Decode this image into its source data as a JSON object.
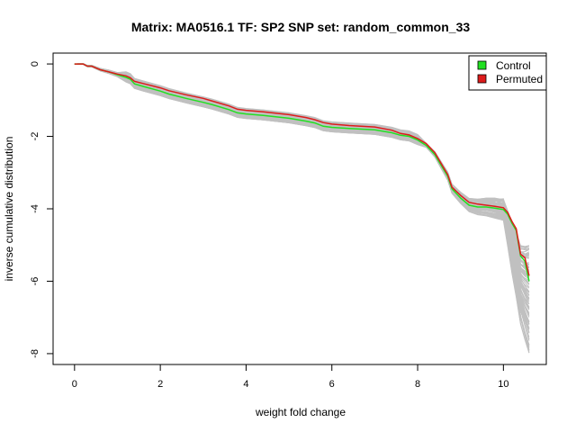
{
  "chart_data": {
    "type": "line",
    "title": "Matrix: MA0516.1 TF: SP2 SNP set: random_common_33",
    "xlabel": "weight fold change",
    "ylabel": "inverse cumulative distribution",
    "xlim": [
      -0.5,
      11.0
    ],
    "ylim": [
      -8.3,
      0.3
    ],
    "x_ticks": [
      0,
      2,
      4,
      6,
      8,
      10
    ],
    "y_ticks": [
      0,
      -2,
      -4,
      -6,
      -8
    ],
    "legend": {
      "placement": "top-right",
      "entries": [
        {
          "label": "Control",
          "color": "#22e022"
        },
        {
          "label": "Permuted",
          "color": "#dd1b1b"
        }
      ]
    },
    "background_lines": {
      "count": 100,
      "color": "#c0c0c0",
      "tail_range_at_x_10_6": [
        -8.0,
        -5.0
      ]
    },
    "series": [
      {
        "name": "Control",
        "color": "#22e022",
        "points": [
          [
            0,
            0
          ],
          [
            0.2,
            0
          ],
          [
            0.3,
            -0.06
          ],
          [
            0.4,
            -0.06
          ],
          [
            0.6,
            -0.16
          ],
          [
            0.8,
            -0.22
          ],
          [
            1,
            -0.3
          ],
          [
            1.2,
            -0.37
          ],
          [
            1.3,
            -0.42
          ],
          [
            1.4,
            -0.55
          ],
          [
            1.6,
            -0.62
          ],
          [
            2,
            -0.75
          ],
          [
            2.2,
            -0.83
          ],
          [
            2.6,
            -0.95
          ],
          [
            3,
            -1.06
          ],
          [
            3.2,
            -1.12
          ],
          [
            3.6,
            -1.26
          ],
          [
            3.8,
            -1.35
          ],
          [
            4,
            -1.38
          ],
          [
            4.4,
            -1.42
          ],
          [
            5,
            -1.5
          ],
          [
            5.4,
            -1.58
          ],
          [
            5.6,
            -1.63
          ],
          [
            5.8,
            -1.72
          ],
          [
            6,
            -1.75
          ],
          [
            6.4,
            -1.78
          ],
          [
            7,
            -1.82
          ],
          [
            7.4,
            -1.9
          ],
          [
            7.6,
            -1.97
          ],
          [
            7.8,
            -2.0
          ],
          [
            8,
            -2.1
          ],
          [
            8.2,
            -2.25
          ],
          [
            8.4,
            -2.5
          ],
          [
            8.6,
            -2.9
          ],
          [
            8.7,
            -3.1
          ],
          [
            8.8,
            -3.45
          ],
          [
            9,
            -3.7
          ],
          [
            9.2,
            -3.9
          ],
          [
            9.4,
            -3.95
          ],
          [
            9.6,
            -3.95
          ],
          [
            9.8,
            -3.98
          ],
          [
            10,
            -4.02
          ],
          [
            10.1,
            -4.15
          ],
          [
            10.2,
            -4.4
          ],
          [
            10.3,
            -4.6
          ],
          [
            10.4,
            -5.3
          ],
          [
            10.5,
            -5.45
          ],
          [
            10.6,
            -6.0
          ]
        ]
      },
      {
        "name": "Permuted",
        "color": "#dd1b1b",
        "points": [
          [
            0,
            0
          ],
          [
            0.2,
            0
          ],
          [
            0.3,
            -0.06
          ],
          [
            0.4,
            -0.06
          ],
          [
            0.6,
            -0.16
          ],
          [
            0.8,
            -0.22
          ],
          [
            1,
            -0.28
          ],
          [
            1.2,
            -0.33
          ],
          [
            1.3,
            -0.38
          ],
          [
            1.4,
            -0.48
          ],
          [
            1.6,
            -0.54
          ],
          [
            2,
            -0.66
          ],
          [
            2.2,
            -0.74
          ],
          [
            2.6,
            -0.85
          ],
          [
            3,
            -0.95
          ],
          [
            3.2,
            -1.02
          ],
          [
            3.6,
            -1.16
          ],
          [
            3.8,
            -1.25
          ],
          [
            4,
            -1.28
          ],
          [
            4.4,
            -1.32
          ],
          [
            5,
            -1.4
          ],
          [
            5.4,
            -1.48
          ],
          [
            5.6,
            -1.54
          ],
          [
            5.8,
            -1.62
          ],
          [
            6,
            -1.66
          ],
          [
            6.4,
            -1.7
          ],
          [
            7,
            -1.74
          ],
          [
            7.4,
            -1.83
          ],
          [
            7.6,
            -1.92
          ],
          [
            7.8,
            -1.96
          ],
          [
            8,
            -2.06
          ],
          [
            8.2,
            -2.2
          ],
          [
            8.4,
            -2.45
          ],
          [
            8.6,
            -2.85
          ],
          [
            8.7,
            -3.05
          ],
          [
            8.8,
            -3.4
          ],
          [
            9,
            -3.63
          ],
          [
            9.2,
            -3.82
          ],
          [
            9.4,
            -3.87
          ],
          [
            9.6,
            -3.9
          ],
          [
            9.8,
            -3.93
          ],
          [
            10,
            -3.97
          ],
          [
            10.1,
            -4.1
          ],
          [
            10.2,
            -4.35
          ],
          [
            10.3,
            -4.55
          ],
          [
            10.4,
            -5.25
          ],
          [
            10.5,
            -5.35
          ],
          [
            10.6,
            -5.85
          ]
        ]
      }
    ]
  }
}
